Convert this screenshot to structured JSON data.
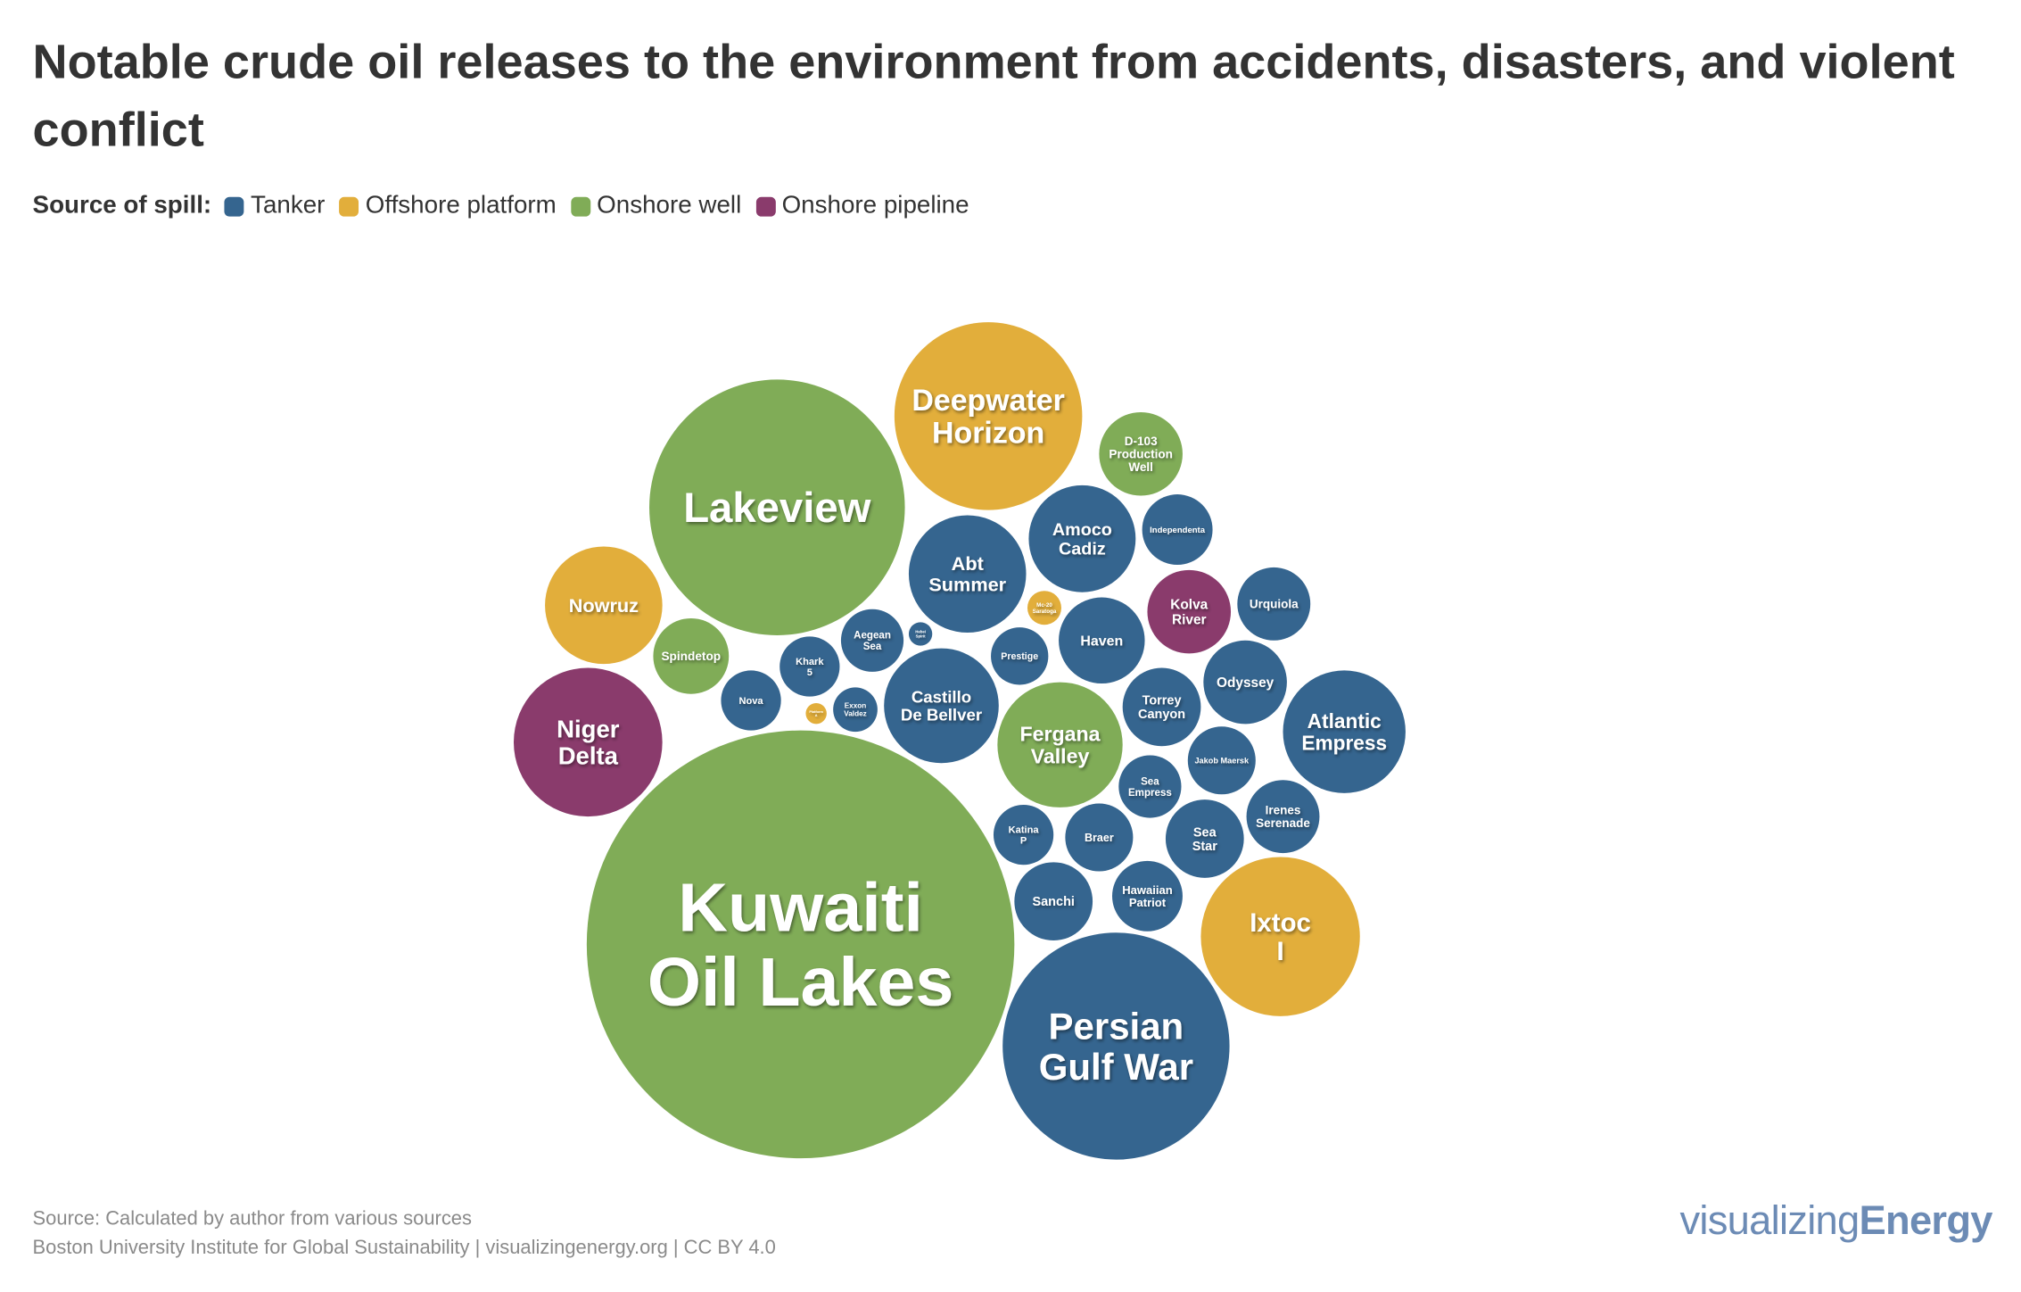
{
  "title": "Notable crude oil releases to the environment from accidents, disasters, and violent conflict",
  "legend": {
    "title": "Source of spill:",
    "items": [
      {
        "key": "tanker",
        "label": "Tanker",
        "color": "#35658f"
      },
      {
        "key": "offshore",
        "label": "Offshore platform",
        "color": "#e2ae3b"
      },
      {
        "key": "onshore_well",
        "label": "Onshore well",
        "color": "#80ac57"
      },
      {
        "key": "pipeline",
        "label": "Onshore pipeline",
        "color": "#8a3b6c"
      }
    ]
  },
  "chart_data": {
    "type": "packed-bubble",
    "title": "Notable crude oil releases to the environment from accidents, disasters, and violent conflict",
    "legend_placement": "top-left",
    "bubbles": [
      {
        "name": "Kuwaiti Oil Lakes",
        "source": "onshore_well"
      },
      {
        "name": "Lakeview",
        "source": "onshore_well"
      },
      {
        "name": "Persian Gulf War",
        "source": "tanker"
      },
      {
        "name": "Deepwater Horizon",
        "source": "offshore"
      },
      {
        "name": "Ixtoc I",
        "source": "offshore"
      },
      {
        "name": "Niger Delta",
        "source": "pipeline"
      },
      {
        "name": "Fergana Valley",
        "source": "onshore_well"
      },
      {
        "name": "Atlantic Empress",
        "source": "tanker"
      },
      {
        "name": "Nowruz",
        "source": "offshore"
      },
      {
        "name": "Abt Summer",
        "source": "tanker"
      },
      {
        "name": "Castillo De Bellver",
        "source": "tanker"
      },
      {
        "name": "Amoco Cadiz",
        "source": "tanker"
      },
      {
        "name": "Haven",
        "source": "tanker"
      },
      {
        "name": "Odyssey",
        "source": "tanker"
      },
      {
        "name": "Kolva River",
        "source": "pipeline"
      },
      {
        "name": "D-103 Production Well",
        "source": "onshore_well"
      },
      {
        "name": "Torrey Canyon",
        "source": "tanker"
      },
      {
        "name": "Sea Star",
        "source": "tanker"
      },
      {
        "name": "Sanchi",
        "source": "tanker"
      },
      {
        "name": "Spindetop",
        "source": "onshore_well"
      },
      {
        "name": "Urquiola",
        "source": "tanker"
      },
      {
        "name": "Irenes Serenade",
        "source": "tanker"
      },
      {
        "name": "Independenta",
        "source": "tanker"
      },
      {
        "name": "Hawaiian Patriot",
        "source": "tanker"
      },
      {
        "name": "Jakob Maersk",
        "source": "tanker"
      },
      {
        "name": "Braer",
        "source": "tanker"
      },
      {
        "name": "Aegean Sea",
        "source": "tanker"
      },
      {
        "name": "Sea Empress",
        "source": "tanker"
      },
      {
        "name": "Khark 5",
        "source": "tanker"
      },
      {
        "name": "Nova",
        "source": "tanker"
      },
      {
        "name": "Katina P",
        "source": "tanker"
      },
      {
        "name": "Prestige",
        "source": "tanker"
      },
      {
        "name": "Exxon Valdez",
        "source": "tanker"
      },
      {
        "name": "Mc-20 Saratoga",
        "source": "offshore"
      },
      {
        "name": "Hebei Spirit",
        "source": "tanker"
      },
      {
        "name": "Platform A",
        "source": "offshore"
      }
    ]
  },
  "footer": {
    "source": "Source: Calculated by author from various sources",
    "credit": "Boston University Institute for Global Sustainability | visualizingenergy.org | CC BY 4.0"
  },
  "logo": {
    "part1": "visualizing",
    "part2": "Energy"
  }
}
